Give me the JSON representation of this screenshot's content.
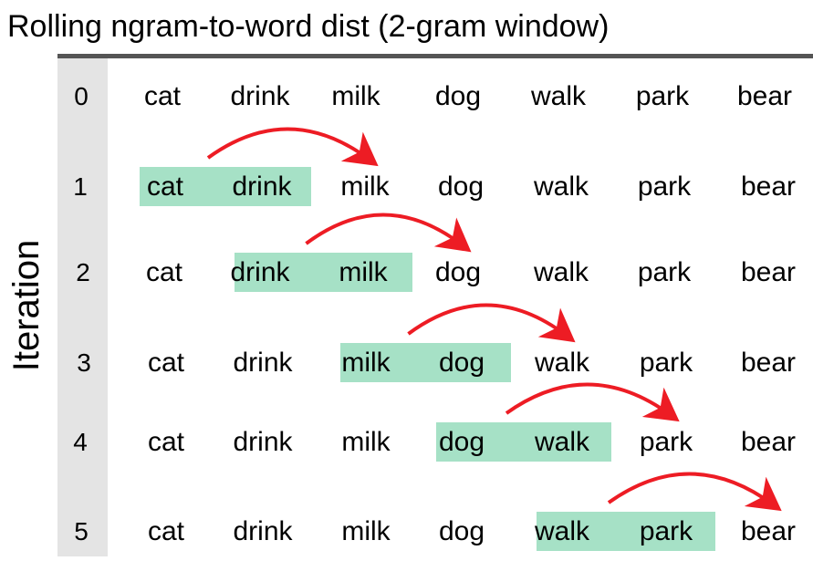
{
  "title": "Rolling ngram-to-word dist (2-gram window)",
  "ylabel": "Iteration",
  "colors": {
    "highlight": "#a6e1c6",
    "arrow": "#ed1c24",
    "index_column": "#e4e4e4",
    "top_rule": "#555555"
  },
  "rows": [
    {
      "iteration": "0",
      "words": [
        "cat",
        "drink",
        "milk",
        "dog",
        "walk",
        "park",
        "bear"
      ],
      "window": []
    },
    {
      "iteration": "1",
      "words": [
        "cat",
        "drink",
        "milk",
        "dog",
        "walk",
        "park",
        "bear"
      ],
      "window": [
        0,
        1
      ],
      "target": 2
    },
    {
      "iteration": "2",
      "words": [
        "cat",
        "drink",
        "milk",
        "dog",
        "walk",
        "park",
        "bear"
      ],
      "window": [
        1,
        2
      ],
      "target": 3
    },
    {
      "iteration": "3",
      "words": [
        "cat",
        "drink",
        "milk",
        "dog",
        "walk",
        "park",
        "bear"
      ],
      "window": [
        2,
        3
      ],
      "target": 4
    },
    {
      "iteration": "4",
      "words": [
        "cat",
        "drink",
        "milk",
        "dog",
        "walk",
        "park",
        "bear"
      ],
      "window": [
        3,
        4
      ],
      "target": 5
    },
    {
      "iteration": "5",
      "words": [
        "cat",
        "drink",
        "milk",
        "dog",
        "walk",
        "park",
        "bear"
      ],
      "window": [
        4,
        5
      ],
      "target": 6
    }
  ]
}
